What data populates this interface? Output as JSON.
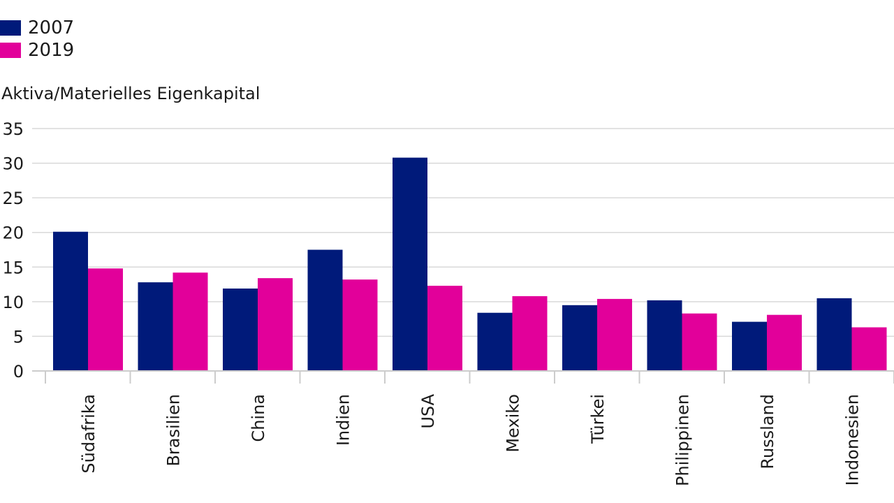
{
  "chart_data": {
    "type": "bar",
    "title": "",
    "xlabel": "",
    "ylabel": "Aktiva/Materielles Eigenkapital",
    "ylim": [
      0,
      35
    ],
    "yticks": [
      0,
      5,
      10,
      15,
      20,
      25,
      30,
      35
    ],
    "grid": true,
    "legend_position": "top-left",
    "categories": [
      "Südafrika",
      "Brasilien",
      "China",
      "Indien",
      "USA",
      "Mexiko",
      "Türkei",
      "Philippinen",
      "Russland",
      "Indonesien"
    ],
    "series": [
      {
        "name": "2007",
        "color": "#001a7a",
        "values": [
          20.1,
          12.8,
          11.9,
          17.5,
          30.8,
          8.4,
          9.5,
          10.2,
          7.1,
          10.5
        ]
      },
      {
        "name": "2019",
        "color": "#e2009a",
        "values": [
          14.8,
          14.2,
          13.4,
          13.2,
          12.3,
          10.8,
          10.4,
          8.3,
          8.1,
          6.3
        ]
      }
    ]
  }
}
